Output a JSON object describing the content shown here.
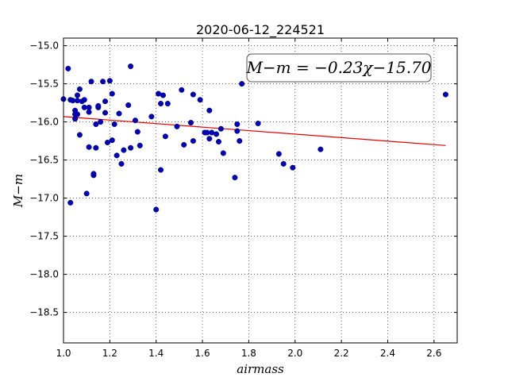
{
  "chart_data": {
    "type": "scatter",
    "title": "2020-06-12_224521",
    "xlabel": "airmass",
    "ylabel": "M−m",
    "xlim": [
      1.0,
      2.7
    ],
    "ylim": [
      -18.9,
      -14.9
    ],
    "y_inverted": true,
    "grid": true,
    "x_ticks": [
      1.0,
      1.2,
      1.4,
      1.6,
      1.8,
      2.0,
      2.2,
      2.4,
      2.6
    ],
    "x_tick_labels": [
      "1.0",
      "1.2",
      "1.4",
      "1.6",
      "1.8",
      "2.0",
      "2.2",
      "2.4",
      "2.6"
    ],
    "y_ticks": [
      -15.0,
      -15.5,
      -16.0,
      -16.5,
      -17.0,
      -17.5,
      -18.0,
      -18.5
    ],
    "y_tick_labels": [
      "−15.0",
      "−15.5",
      "−16.0",
      "−16.5",
      "−17.0",
      "−17.5",
      "−18.0",
      "−18.5"
    ],
    "annotation": "M−m = −0.23χ−15.70",
    "fit": {
      "slope": -0.23,
      "intercept": -15.7,
      "x_range": [
        1.0,
        2.65
      ],
      "color": "#e60000"
    },
    "point_color": "#0000bf",
    "points": [
      [
        1.0,
        -15.7
      ],
      [
        1.02,
        -15.3
      ],
      [
        1.03,
        -15.71
      ],
      [
        1.03,
        -17.06
      ],
      [
        1.04,
        -15.72
      ],
      [
        1.05,
        -15.9
      ],
      [
        1.05,
        -15.85
      ],
      [
        1.05,
        -15.96
      ],
      [
        1.06,
        -15.65
      ],
      [
        1.06,
        -15.9
      ],
      [
        1.06,
        -15.72
      ],
      [
        1.07,
        -15.57
      ],
      [
        1.07,
        -16.17
      ],
      [
        1.08,
        -15.73
      ],
      [
        1.09,
        -15.71
      ],
      [
        1.09,
        -15.81
      ],
      [
        1.1,
        -16.94
      ],
      [
        1.11,
        -16.33
      ],
      [
        1.11,
        -15.87
      ],
      [
        1.11,
        -15.81
      ],
      [
        1.12,
        -15.47
      ],
      [
        1.13,
        -16.7
      ],
      [
        1.13,
        -16.68
      ],
      [
        1.14,
        -16.34
      ],
      [
        1.14,
        -16.03
      ],
      [
        1.15,
        -15.81
      ],
      [
        1.15,
        -15.79
      ],
      [
        1.16,
        -16.0
      ],
      [
        1.17,
        -15.47
      ],
      [
        1.18,
        -15.73
      ],
      [
        1.18,
        -15.88
      ],
      [
        1.19,
        -16.27
      ],
      [
        1.2,
        -15.46
      ],
      [
        1.21,
        -16.24
      ],
      [
        1.21,
        -15.63
      ],
      [
        1.22,
        -16.03
      ],
      [
        1.23,
        -16.44
      ],
      [
        1.24,
        -15.89
      ],
      [
        1.25,
        -16.55
      ],
      [
        1.26,
        -16.37
      ],
      [
        1.28,
        -15.78
      ],
      [
        1.29,
        -15.27
      ],
      [
        1.29,
        -16.34
      ],
      [
        1.31,
        -15.98
      ],
      [
        1.32,
        -16.13
      ],
      [
        1.33,
        -16.31
      ],
      [
        1.38,
        -15.93
      ],
      [
        1.4,
        -17.15
      ],
      [
        1.41,
        -15.63
      ],
      [
        1.42,
        -16.63
      ],
      [
        1.42,
        -15.76
      ],
      [
        1.43,
        -15.65
      ],
      [
        1.44,
        -16.19
      ],
      [
        1.45,
        -15.76
      ],
      [
        1.49,
        -16.06
      ],
      [
        1.51,
        -15.58
      ],
      [
        1.52,
        -16.3
      ],
      [
        1.55,
        -16.01
      ],
      [
        1.56,
        -16.25
      ],
      [
        1.56,
        -15.64
      ],
      [
        1.59,
        -15.71
      ],
      [
        1.61,
        -16.14
      ],
      [
        1.62,
        -16.14
      ],
      [
        1.63,
        -15.85
      ],
      [
        1.63,
        -16.22
      ],
      [
        1.64,
        -16.14
      ],
      [
        1.66,
        -16.16
      ],
      [
        1.67,
        -16.26
      ],
      [
        1.68,
        -16.09
      ],
      [
        1.69,
        -16.41
      ],
      [
        1.74,
        -16.73
      ],
      [
        1.75,
        -16.03
      ],
      [
        1.75,
        -16.12
      ],
      [
        1.76,
        -16.25
      ],
      [
        1.77,
        -15.5
      ],
      [
        1.84,
        -16.02
      ],
      [
        1.93,
        -16.42
      ],
      [
        1.95,
        -16.55
      ],
      [
        1.99,
        -16.6
      ],
      [
        2.11,
        -16.36
      ],
      [
        2.65,
        -15.64
      ]
    ]
  }
}
